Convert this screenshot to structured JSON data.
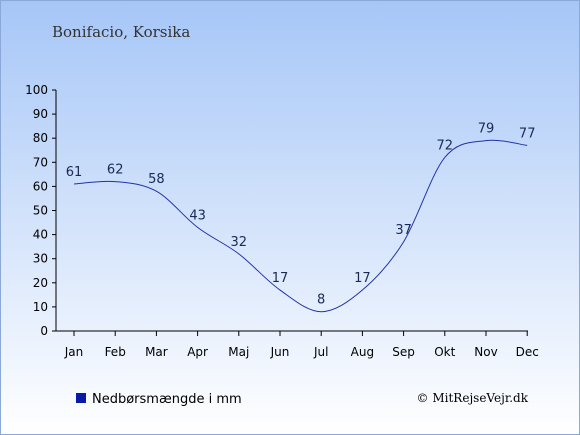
{
  "chart_data": {
    "type": "line",
    "title": "Bonifacio, Korsika",
    "categories": [
      "Jan",
      "Feb",
      "Mar",
      "Apr",
      "Maj",
      "Jun",
      "Jul",
      "Aug",
      "Sep",
      "Okt",
      "Nov",
      "Dec"
    ],
    "series": [
      {
        "name": "Nedbørsmængde i mm",
        "values": [
          61,
          62,
          58,
          43,
          32,
          17,
          8,
          17,
          37,
          72,
          79,
          77
        ],
        "color": "#2233aa"
      }
    ],
    "ylim": [
      0,
      100
    ],
    "yticks": [
      0,
      10,
      20,
      30,
      40,
      50,
      60,
      70,
      80,
      90,
      100
    ],
    "grid": false,
    "legend_position": "bottom-left",
    "legend_marker_color": "#0a1aa8",
    "background_gradient": [
      "#a6c6f7",
      "#ffffff"
    ]
  },
  "credit": "© MitRejseVejr.dk"
}
